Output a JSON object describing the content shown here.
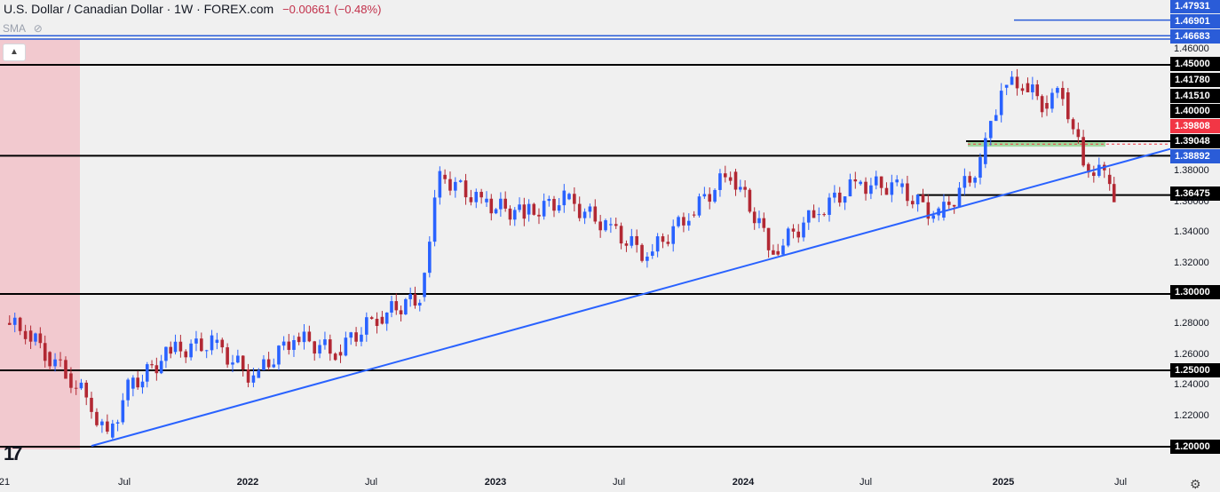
{
  "header": {
    "title": "U.S. Dollar / Canadian Dollar · 1W · FOREX.com",
    "change": "−0.00661 (−0.48%)",
    "indicator": "SMA"
  },
  "icons": {
    "collapse": "chevron-up-icon",
    "visibility": "eye-off-icon",
    "logo": "tradingview-logo-icon",
    "settings": "gear-icon"
  },
  "colors": {
    "up": "#2962ff",
    "down": "#b22833",
    "support": "#000000",
    "blue_level": "#2a5cd8",
    "red_label": "#f23645",
    "zone_fill": "#f2c4cb",
    "green_zone": "#8dd28a"
  },
  "chart_data": {
    "type": "candlestick",
    "title": "U.S. Dollar / Canadian Dollar · 1W · FOREX.com",
    "interval": "1W",
    "ylim": [
      1.19,
      1.48
    ],
    "x_ticks": [
      "21",
      "Jul",
      "2022",
      "Jul",
      "2023",
      "Jul",
      "2024",
      "Jul",
      "2025",
      "Jul"
    ],
    "y_ticks": [
      "1.46000",
      "1.38000",
      "1.36000",
      "1.34000",
      "1.32000",
      "1.28000",
      "1.26000",
      "1.24000",
      "1.22000"
    ],
    "horizontal_levels_black": [
      "1.45000",
      "1.41780",
      "1.41510",
      "1.40000",
      "1.39048",
      "1.36475",
      "1.30000",
      "1.25000",
      "1.20000"
    ],
    "horizontal_levels_blue": [
      "1.47931",
      "1.46901",
      "1.46683"
    ],
    "price_labels_blue": [
      "1.47931",
      "1.46901",
      "1.46683",
      "1.38892"
    ],
    "price_label_red": "1.39808",
    "trendline": {
      "from": {
        "date": "2021-05",
        "price": 1.2005
      },
      "to": {
        "date": "2025-06",
        "price": 1.384
      }
    },
    "grid": false,
    "ohlc_approx": [
      {
        "date": "2021-01",
        "o": 1.281,
        "h": 1.288,
        "l": 1.266,
        "c": 1.276
      },
      {
        "date": "2021-02",
        "o": 1.276,
        "h": 1.281,
        "l": 1.248,
        "c": 1.262
      },
      {
        "date": "2021-03",
        "o": 1.262,
        "h": 1.272,
        "l": 1.245,
        "c": 1.248
      },
      {
        "date": "2021-04",
        "o": 1.248,
        "h": 1.255,
        "l": 1.225,
        "c": 1.232
      },
      {
        "date": "2021-05",
        "o": 1.232,
        "h": 1.236,
        "l": 1.2005,
        "c": 1.206
      },
      {
        "date": "2021-06",
        "o": 1.206,
        "h": 1.245,
        "l": 1.203,
        "c": 1.238
      },
      {
        "date": "2021-07",
        "o": 1.238,
        "h": 1.292,
        "l": 1.232,
        "c": 1.262
      },
      {
        "date": "2021-09",
        "o": 1.262,
        "h": 1.285,
        "l": 1.245,
        "c": 1.268
      },
      {
        "date": "2021-11",
        "o": 1.268,
        "h": 1.284,
        "l": 1.23,
        "c": 1.245
      },
      {
        "date": "2022-01",
        "o": 1.245,
        "h": 1.288,
        "l": 1.25,
        "c": 1.272
      },
      {
        "date": "2022-03",
        "o": 1.272,
        "h": 1.294,
        "l": 1.245,
        "c": 1.262
      },
      {
        "date": "2022-05",
        "o": 1.262,
        "h": 1.305,
        "l": 1.252,
        "c": 1.285
      },
      {
        "date": "2022-07",
        "o": 1.285,
        "h": 1.312,
        "l": 1.27,
        "c": 1.298
      },
      {
        "date": "2022-09",
        "o": 1.298,
        "h": 1.385,
        "l": 1.295,
        "c": 1.378
      },
      {
        "date": "2022-10",
        "o": 1.378,
        "h": 1.398,
        "l": 1.352,
        "c": 1.36
      },
      {
        "date": "2022-12",
        "o": 1.36,
        "h": 1.382,
        "l": 1.332,
        "c": 1.352
      },
      {
        "date": "2023-02",
        "o": 1.352,
        "h": 1.38,
        "l": 1.332,
        "c": 1.362
      },
      {
        "date": "2023-04",
        "o": 1.362,
        "h": 1.382,
        "l": 1.335,
        "c": 1.345
      },
      {
        "date": "2023-06",
        "o": 1.345,
        "h": 1.35,
        "l": 1.31,
        "c": 1.325
      },
      {
        "date": "2023-08",
        "o": 1.325,
        "h": 1.36,
        "l": 1.318,
        "c": 1.352
      },
      {
        "date": "2023-10",
        "o": 1.352,
        "h": 1.39,
        "l": 1.35,
        "c": 1.38
      },
      {
        "date": "2023-12",
        "o": 1.38,
        "h": 1.386,
        "l": 1.32,
        "c": 1.328
      },
      {
        "date": "2024-02",
        "o": 1.328,
        "h": 1.362,
        "l": 1.325,
        "c": 1.352
      },
      {
        "date": "2024-04",
        "o": 1.352,
        "h": 1.385,
        "l": 1.345,
        "c": 1.372
      },
      {
        "date": "2024-06",
        "o": 1.372,
        "h": 1.385,
        "l": 1.36,
        "c": 1.37
      },
      {
        "date": "2024-08",
        "o": 1.37,
        "h": 1.39,
        "l": 1.345,
        "c": 1.35
      },
      {
        "date": "2024-10",
        "o": 1.35,
        "h": 1.392,
        "l": 1.348,
        "c": 1.385
      },
      {
        "date": "2024-12",
        "o": 1.385,
        "h": 1.445,
        "l": 1.38,
        "c": 1.435
      },
      {
        "date": "2025-01",
        "o": 1.435,
        "h": 1.4793,
        "l": 1.41,
        "c": 1.438
      },
      {
        "date": "2025-02",
        "o": 1.438,
        "h": 1.455,
        "l": 1.398,
        "c": 1.425
      },
      {
        "date": "2025-03",
        "o": 1.425,
        "h": 1.452,
        "l": 1.405,
        "c": 1.432
      },
      {
        "date": "2025-04",
        "o": 1.432,
        "h": 1.44,
        "l": 1.375,
        "c": 1.385
      },
      {
        "date": "2025-05",
        "o": 1.385,
        "h": 1.397,
        "l": 1.372,
        "c": 1.378
      },
      {
        "date": "2025-06",
        "o": 1.378,
        "h": 1.384,
        "l": 1.364,
        "c": 1.366
      }
    ]
  }
}
